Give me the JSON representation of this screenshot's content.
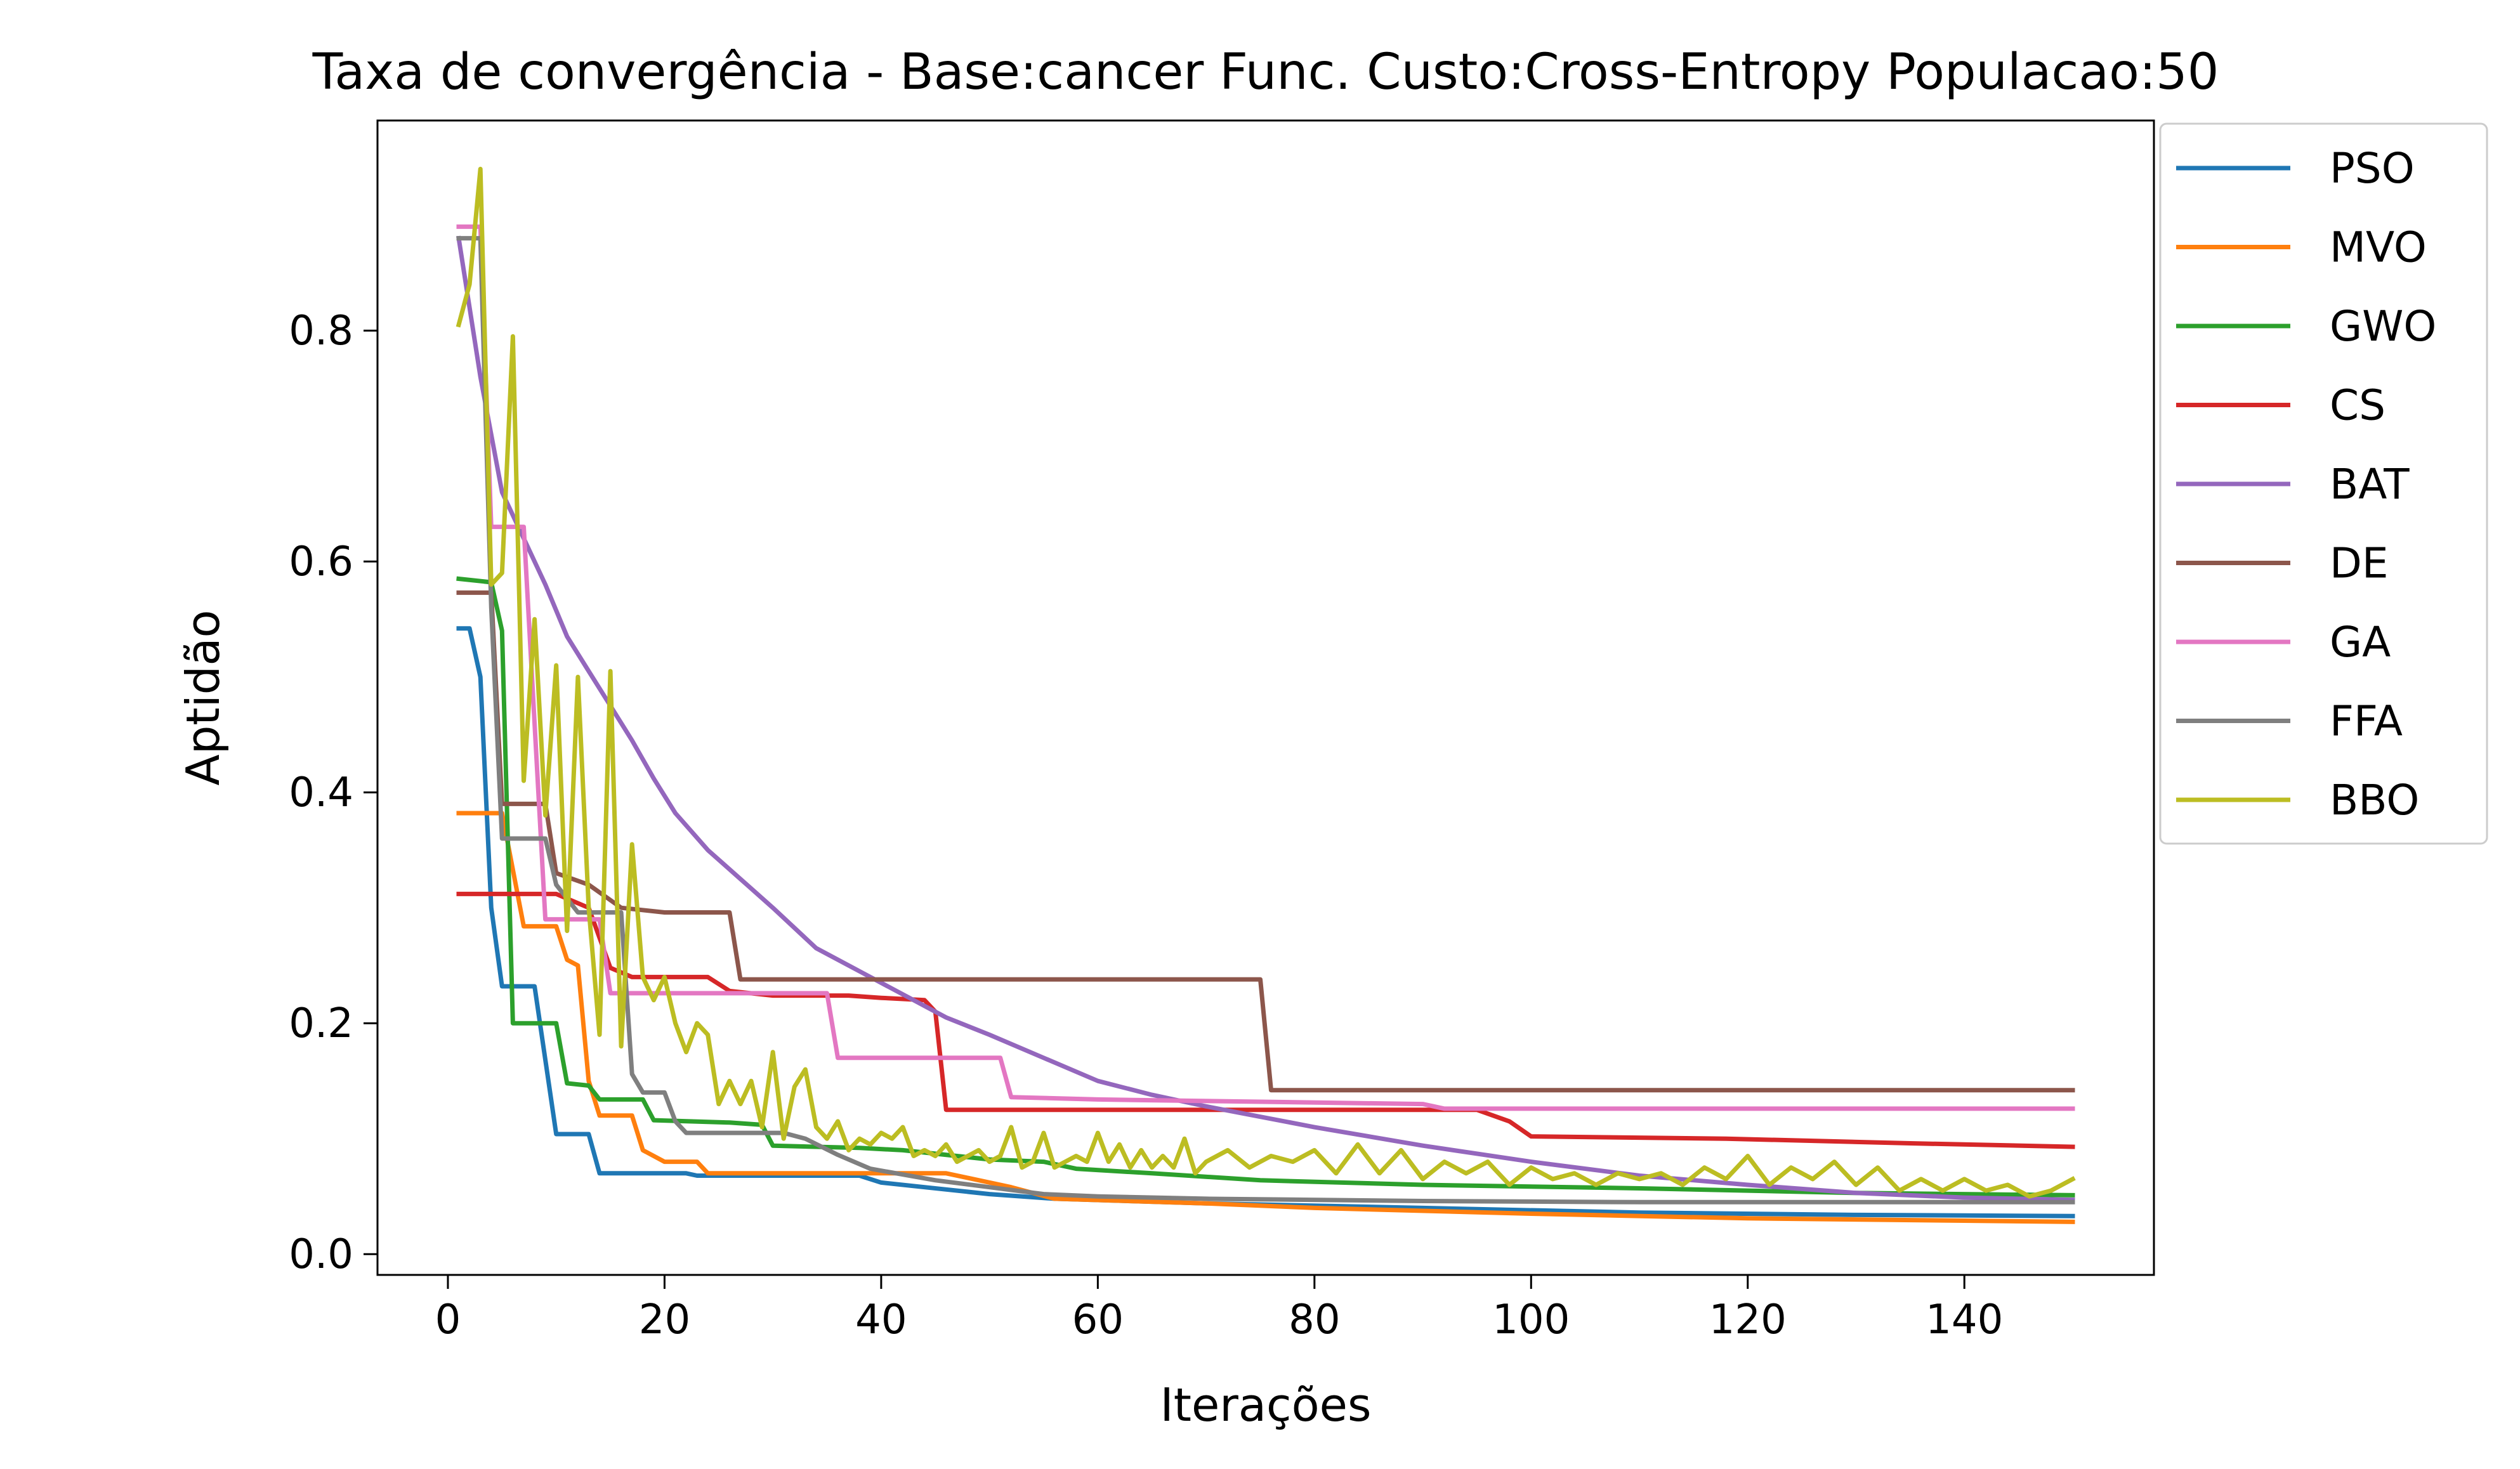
{
  "chart_data": {
    "type": "line",
    "title": "Taxa de convergência - Base:cancer Func. Custo:Cross-Entropy Populacao:50",
    "xlabel": "Iterações",
    "ylabel": "Aptidão",
    "xlim": [
      -6.5,
      157.5
    ],
    "ylim": [
      -0.018,
      0.982
    ],
    "xticks": [
      0,
      20,
      40,
      60,
      80,
      100,
      120,
      140
    ],
    "yticks": [
      0.0,
      0.2,
      0.4,
      0.6,
      0.8
    ],
    "xtick_labels": [
      "0",
      "20",
      "40",
      "60",
      "80",
      "100",
      "120",
      "140"
    ],
    "ytick_labels": [
      "0.0",
      "0.2",
      "0.4",
      "0.6",
      "0.8"
    ],
    "grid": false,
    "legend": "outside upper right",
    "series": [
      {
        "name": "PSO",
        "color": "#1f77b4",
        "points": [
          [
            1,
            0.542
          ],
          [
            2,
            0.542
          ],
          [
            3,
            0.5
          ],
          [
            4,
            0.3
          ],
          [
            5,
            0.232
          ],
          [
            8,
            0.232
          ],
          [
            10,
            0.104
          ],
          [
            13,
            0.104
          ],
          [
            14,
            0.07
          ],
          [
            22,
            0.07
          ],
          [
            23,
            0.068
          ],
          [
            38,
            0.068
          ],
          [
            40,
            0.062
          ],
          [
            44,
            0.058
          ],
          [
            50,
            0.052
          ],
          [
            56,
            0.048
          ],
          [
            70,
            0.044
          ],
          [
            90,
            0.04
          ],
          [
            110,
            0.036
          ],
          [
            130,
            0.034
          ],
          [
            150,
            0.033
          ]
        ]
      },
      {
        "name": "MVO",
        "color": "#ff7f0e",
        "points": [
          [
            1,
            0.382
          ],
          [
            5,
            0.382
          ],
          [
            7,
            0.284
          ],
          [
            10,
            0.284
          ],
          [
            11,
            0.255
          ],
          [
            12,
            0.25
          ],
          [
            13,
            0.15
          ],
          [
            14,
            0.12
          ],
          [
            17,
            0.12
          ],
          [
            18,
            0.09
          ],
          [
            20,
            0.08
          ],
          [
            23,
            0.08
          ],
          [
            24,
            0.07
          ],
          [
            46,
            0.07
          ],
          [
            48,
            0.066
          ],
          [
            52,
            0.058
          ],
          [
            56,
            0.048
          ],
          [
            70,
            0.044
          ],
          [
            80,
            0.04
          ],
          [
            100,
            0.035
          ],
          [
            120,
            0.031
          ],
          [
            140,
            0.029
          ],
          [
            150,
            0.028
          ]
        ]
      },
      {
        "name": "GWO",
        "color": "#2ca02c",
        "points": [
          [
            1,
            0.585
          ],
          [
            4,
            0.582
          ],
          [
            5,
            0.54
          ],
          [
            6,
            0.2
          ],
          [
            10,
            0.2
          ],
          [
            11,
            0.148
          ],
          [
            13,
            0.146
          ],
          [
            14,
            0.134
          ],
          [
            18,
            0.134
          ],
          [
            19,
            0.116
          ],
          [
            26,
            0.114
          ],
          [
            29,
            0.112
          ],
          [
            30,
            0.094
          ],
          [
            38,
            0.092
          ],
          [
            42,
            0.09
          ],
          [
            50,
            0.082
          ],
          [
            55,
            0.08
          ],
          [
            58,
            0.074
          ],
          [
            65,
            0.07
          ],
          [
            75,
            0.064
          ],
          [
            90,
            0.06
          ],
          [
            110,
            0.057
          ],
          [
            130,
            0.053
          ],
          [
            150,
            0.051
          ]
        ]
      },
      {
        "name": "CS",
        "color": "#d62728",
        "points": [
          [
            1,
            0.312
          ],
          [
            10,
            0.312
          ],
          [
            13,
            0.3
          ],
          [
            15,
            0.248
          ],
          [
            17,
            0.24
          ],
          [
            24,
            0.24
          ],
          [
            26,
            0.228
          ],
          [
            30,
            0.224
          ],
          [
            37,
            0.224
          ],
          [
            40,
            0.222
          ],
          [
            44,
            0.22
          ],
          [
            45,
            0.21
          ],
          [
            46,
            0.125
          ],
          [
            95,
            0.125
          ],
          [
            98,
            0.115
          ],
          [
            100,
            0.102
          ],
          [
            118,
            0.1
          ],
          [
            135,
            0.096
          ],
          [
            150,
            0.093
          ]
        ]
      },
      {
        "name": "BAT",
        "color": "#9467bd",
        "points": [
          [
            1,
            0.88
          ],
          [
            3,
            0.76
          ],
          [
            5,
            0.66
          ],
          [
            7,
            0.62
          ],
          [
            9,
            0.58
          ],
          [
            11,
            0.535
          ],
          [
            13,
            0.505
          ],
          [
            15,
            0.475
          ],
          [
            17,
            0.445
          ],
          [
            19,
            0.412
          ],
          [
            21,
            0.382
          ],
          [
            24,
            0.35
          ],
          [
            27,
            0.325
          ],
          [
            30,
            0.3
          ],
          [
            34,
            0.265
          ],
          [
            38,
            0.245
          ],
          [
            42,
            0.225
          ],
          [
            46,
            0.205
          ],
          [
            50,
            0.19
          ],
          [
            55,
            0.17
          ],
          [
            60,
            0.15
          ],
          [
            65,
            0.138
          ],
          [
            70,
            0.128
          ],
          [
            80,
            0.11
          ],
          [
            90,
            0.094
          ],
          [
            100,
            0.08
          ],
          [
            110,
            0.068
          ],
          [
            120,
            0.06
          ],
          [
            130,
            0.053
          ],
          [
            140,
            0.049
          ],
          [
            150,
            0.047
          ]
        ]
      },
      {
        "name": "DE",
        "color": "#8c564b",
        "points": [
          [
            1,
            0.573
          ],
          [
            4,
            0.573
          ],
          [
            5,
            0.39
          ],
          [
            9,
            0.39
          ],
          [
            10,
            0.33
          ],
          [
            13,
            0.32
          ],
          [
            16,
            0.3
          ],
          [
            20,
            0.296
          ],
          [
            26,
            0.296
          ],
          [
            27,
            0.238
          ],
          [
            75,
            0.238
          ],
          [
            76,
            0.142
          ],
          [
            150,
            0.142
          ]
        ]
      },
      {
        "name": "GA",
        "color": "#e377c2",
        "points": [
          [
            1,
            0.89
          ],
          [
            3,
            0.89
          ],
          [
            4,
            0.63
          ],
          [
            6,
            0.63
          ],
          [
            7,
            0.63
          ],
          [
            9,
            0.29
          ],
          [
            14,
            0.29
          ],
          [
            15,
            0.226
          ],
          [
            35,
            0.226
          ],
          [
            36,
            0.17
          ],
          [
            51,
            0.17
          ],
          [
            52,
            0.136
          ],
          [
            60,
            0.134
          ],
          [
            90,
            0.13
          ],
          [
            92,
            0.126
          ],
          [
            150,
            0.126
          ]
        ]
      },
      {
        "name": "FFA",
        "color": "#7f7f7f",
        "points": [
          [
            1,
            0.88
          ],
          [
            3,
            0.88
          ],
          [
            4,
            0.56
          ],
          [
            5,
            0.36
          ],
          [
            9,
            0.36
          ],
          [
            10,
            0.32
          ],
          [
            12,
            0.296
          ],
          [
            16,
            0.296
          ],
          [
            17,
            0.156
          ],
          [
            18,
            0.14
          ],
          [
            20,
            0.14
          ],
          [
            21,
            0.115
          ],
          [
            22,
            0.105
          ],
          [
            31,
            0.105
          ],
          [
            33,
            0.1
          ],
          [
            36,
            0.086
          ],
          [
            39,
            0.074
          ],
          [
            45,
            0.064
          ],
          [
            50,
            0.058
          ],
          [
            55,
            0.052
          ],
          [
            60,
            0.05
          ],
          [
            70,
            0.048
          ],
          [
            90,
            0.046
          ],
          [
            110,
            0.045
          ],
          [
            150,
            0.045
          ]
        ]
      },
      {
        "name": "BBO",
        "color": "#bcbd22",
        "points": [
          [
            1,
            0.805
          ],
          [
            2,
            0.84
          ],
          [
            3,
            0.94
          ],
          [
            4,
            0.58
          ],
          [
            5,
            0.59
          ],
          [
            6,
            0.795
          ],
          [
            7,
            0.41
          ],
          [
            8,
            0.55
          ],
          [
            9,
            0.38
          ],
          [
            10,
            0.51
          ],
          [
            11,
            0.28
          ],
          [
            12,
            0.5
          ],
          [
            13,
            0.3
          ],
          [
            14,
            0.19
          ],
          [
            15,
            0.505
          ],
          [
            16,
            0.18
          ],
          [
            17,
            0.355
          ],
          [
            18,
            0.24
          ],
          [
            19,
            0.22
          ],
          [
            20,
            0.24
          ],
          [
            21,
            0.2
          ],
          [
            22,
            0.175
          ],
          [
            23,
            0.2
          ],
          [
            24,
            0.19
          ],
          [
            25,
            0.13
          ],
          [
            26,
            0.15
          ],
          [
            27,
            0.13
          ],
          [
            28,
            0.15
          ],
          [
            29,
            0.11
          ],
          [
            30,
            0.175
          ],
          [
            31,
            0.1
          ],
          [
            32,
            0.145
          ],
          [
            33,
            0.16
          ],
          [
            34,
            0.11
          ],
          [
            35,
            0.1
          ],
          [
            36,
            0.115
          ],
          [
            37,
            0.09
          ],
          [
            38,
            0.1
          ],
          [
            39,
            0.095
          ],
          [
            40,
            0.105
          ],
          [
            41,
            0.1
          ],
          [
            42,
            0.11
          ],
          [
            43,
            0.085
          ],
          [
            44,
            0.09
          ],
          [
            45,
            0.085
          ],
          [
            46,
            0.095
          ],
          [
            47,
            0.08
          ],
          [
            48,
            0.085
          ],
          [
            49,
            0.09
          ],
          [
            50,
            0.08
          ],
          [
            51,
            0.085
          ],
          [
            52,
            0.11
          ],
          [
            53,
            0.075
          ],
          [
            54,
            0.08
          ],
          [
            55,
            0.105
          ],
          [
            56,
            0.075
          ],
          [
            57,
            0.08
          ],
          [
            58,
            0.085
          ],
          [
            59,
            0.08
          ],
          [
            60,
            0.105
          ],
          [
            61,
            0.08
          ],
          [
            62,
            0.095
          ],
          [
            63,
            0.075
          ],
          [
            64,
            0.09
          ],
          [
            65,
            0.075
          ],
          [
            66,
            0.085
          ],
          [
            67,
            0.075
          ],
          [
            68,
            0.1
          ],
          [
            69,
            0.07
          ],
          [
            70,
            0.08
          ],
          [
            72,
            0.09
          ],
          [
            74,
            0.075
          ],
          [
            76,
            0.085
          ],
          [
            78,
            0.08
          ],
          [
            80,
            0.09
          ],
          [
            82,
            0.07
          ],
          [
            84,
            0.095
          ],
          [
            86,
            0.07
          ],
          [
            88,
            0.09
          ],
          [
            90,
            0.065
          ],
          [
            92,
            0.08
          ],
          [
            94,
            0.07
          ],
          [
            96,
            0.08
          ],
          [
            98,
            0.06
          ],
          [
            100,
            0.075
          ],
          [
            102,
            0.065
          ],
          [
            104,
            0.07
          ],
          [
            106,
            0.06
          ],
          [
            108,
            0.07
          ],
          [
            110,
            0.065
          ],
          [
            112,
            0.07
          ],
          [
            114,
            0.06
          ],
          [
            116,
            0.075
          ],
          [
            118,
            0.065
          ],
          [
            120,
            0.085
          ],
          [
            122,
            0.06
          ],
          [
            124,
            0.075
          ],
          [
            126,
            0.065
          ],
          [
            128,
            0.08
          ],
          [
            130,
            0.06
          ],
          [
            132,
            0.075
          ],
          [
            134,
            0.055
          ],
          [
            136,
            0.065
          ],
          [
            138,
            0.055
          ],
          [
            140,
            0.065
          ],
          [
            142,
            0.055
          ],
          [
            144,
            0.06
          ],
          [
            146,
            0.05
          ],
          [
            148,
            0.055
          ],
          [
            150,
            0.065
          ]
        ]
      }
    ]
  }
}
